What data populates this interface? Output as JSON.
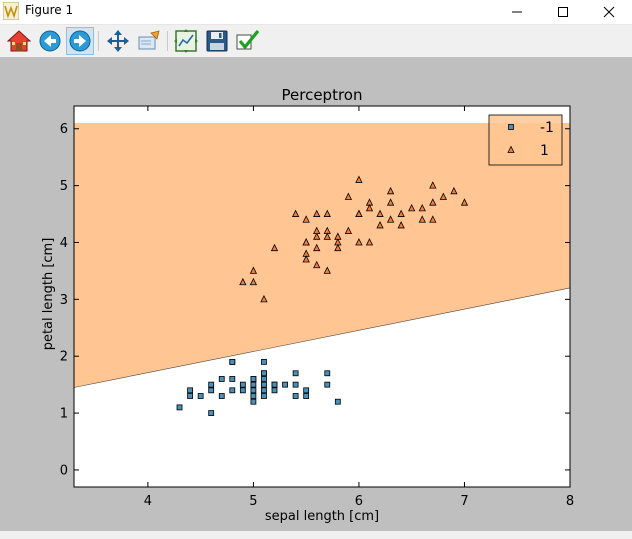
{
  "window": {
    "title": "Figure 1",
    "controls": [
      "minimize-icon",
      "maximize-icon",
      "close-icon"
    ]
  },
  "toolbar": {
    "buttons": [
      {
        "name": "home-button",
        "icon": "home-icon"
      },
      {
        "name": "back-button",
        "icon": "back-arrow-icon"
      },
      {
        "name": "forward-button",
        "icon": "forward-arrow-icon",
        "active": true
      },
      {
        "name": "pan-button",
        "icon": "pan-move-icon"
      },
      {
        "name": "zoom-button",
        "icon": "zoom-rect-icon"
      },
      {
        "name": "subplots-button",
        "icon": "configure-subplots-icon"
      },
      {
        "name": "save-button",
        "icon": "floppy-disk-icon"
      },
      {
        "name": "edit-button",
        "icon": "checkmark-icon"
      }
    ]
  },
  "colors": {
    "region_positive": "#ffc592",
    "region_negative": "#ffffff",
    "marker_negative": "#4a90b8",
    "marker_positive": "#f08040",
    "figure_background": "#bfbfbf"
  },
  "chart_data": {
    "type": "scatter",
    "title": "Perceptron",
    "xlabel": "sepal length [cm]",
    "ylabel": "petal length [cm]",
    "xlim": [
      3.3,
      8.0
    ],
    "ylim": [
      -0.3,
      6.4
    ],
    "xticks": [
      4,
      5,
      6,
      7,
      8
    ],
    "yticks": [
      0,
      1,
      2,
      3,
      4,
      5,
      6
    ],
    "grid": false,
    "legend_position": "top-right",
    "decision_boundary": {
      "x": [
        3.3,
        8.0
      ],
      "y": [
        1.45,
        3.2
      ],
      "region_top_y": 6.1,
      "upper_class": "1",
      "lower_class": "-1"
    },
    "series": [
      {
        "name": "-1",
        "marker": "square",
        "x": [
          4.3,
          4.4,
          4.4,
          4.5,
          4.6,
          4.6,
          4.7,
          4.8,
          4.8,
          4.8,
          4.9,
          4.9,
          5.0,
          5.0,
          5.0,
          5.0,
          5.0,
          5.1,
          5.1,
          5.1,
          5.1,
          5.1,
          5.1,
          5.2,
          5.2,
          5.3,
          5.4,
          5.4,
          5.4,
          5.5,
          5.5,
          5.7,
          5.7,
          5.8,
          4.6,
          4.7,
          4.8,
          5.0,
          5.2,
          5.1
        ],
        "y": [
          1.1,
          1.3,
          1.4,
          1.3,
          1.4,
          1.5,
          1.3,
          1.4,
          1.6,
          1.9,
          1.4,
          1.5,
          1.2,
          1.3,
          1.4,
          1.5,
          1.6,
          1.4,
          1.5,
          1.6,
          1.7,
          1.9,
          1.3,
          1.4,
          1.5,
          1.5,
          1.3,
          1.5,
          1.7,
          1.3,
          1.4,
          1.5,
          1.7,
          1.2,
          1.0,
          1.6,
          1.9,
          1.6,
          1.5,
          1.7
        ]
      },
      {
        "name": "1",
        "marker": "triangle",
        "x": [
          4.9,
          5.0,
          5.0,
          5.1,
          5.2,
          5.4,
          5.5,
          5.5,
          5.5,
          5.5,
          5.6,
          5.6,
          5.6,
          5.6,
          5.7,
          5.7,
          5.7,
          5.7,
          5.8,
          5.8,
          5.8,
          5.9,
          5.9,
          6.0,
          6.0,
          6.0,
          6.0,
          6.1,
          6.1,
          6.1,
          6.2,
          6.2,
          6.3,
          6.3,
          6.3,
          6.4,
          6.4,
          6.5,
          6.6,
          6.6,
          6.7,
          6.7,
          6.7,
          6.8,
          6.9,
          7.0,
          5.5,
          5.6
        ],
        "y": [
          3.3,
          3.3,
          3.5,
          3.0,
          3.9,
          4.5,
          4.0,
          4.4,
          3.8,
          3.7,
          4.1,
          4.2,
          3.6,
          3.9,
          4.2,
          4.5,
          4.1,
          3.5,
          4.0,
          4.1,
          3.9,
          4.2,
          4.8,
          4.5,
          5.1,
          4.0,
          4.5,
          4.7,
          4.6,
          4.0,
          4.3,
          4.5,
          4.7,
          4.9,
          4.4,
          4.5,
          4.3,
          4.6,
          4.4,
          4.6,
          4.4,
          5.0,
          4.7,
          4.8,
          4.9,
          4.7,
          4.0,
          4.5
        ]
      }
    ]
  }
}
